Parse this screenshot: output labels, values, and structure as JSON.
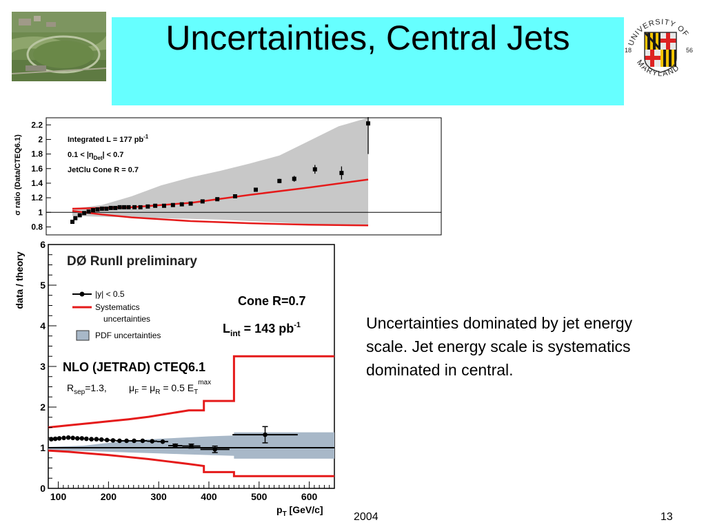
{
  "slide": {
    "title": "Uncertainties, Central Jets",
    "body_text": "Uncertainties dominated by jet energy scale.  Jet energy scale is systematics dominated in central.",
    "footer_year": "2004",
    "page_number": "13"
  },
  "logo": {
    "top_text": "UNIVERSITY OF",
    "bottom_text": "MARYLAND",
    "year_left": "18",
    "year_right": "56"
  },
  "colors": {
    "title_background": "#66ffff",
    "systematics_red": "#e51a1a",
    "pdf_band_top": "#c8c8c8",
    "pdf_band_bottom": "#a8b8c8"
  },
  "chart_data": [
    {
      "type": "scatter",
      "ylabel": "σ ratio (Data/CTEQ6.1)",
      "annotations": [
        "Integrated L = 177 pb",
        "-1",
        "0.1 < |η",
        "Det",
        "| < 0.7",
        "JetClu Cone R = 0.7"
      ],
      "y_ticks": [
        "0.8",
        "1",
        "1.2",
        "1.4",
        "1.6",
        "1.8",
        "2",
        "2.2"
      ],
      "ylim": [
        0.7,
        2.25
      ],
      "x_range_normalized": [
        0,
        1
      ],
      "data_points": [
        {
          "x": 0.0,
          "y": 0.87,
          "err": 0.01
        },
        {
          "x": 0.01,
          "y": 0.92,
          "err": 0.01
        },
        {
          "x": 0.025,
          "y": 0.96,
          "err": 0.01
        },
        {
          "x": 0.04,
          "y": 0.99,
          "err": 0.01
        },
        {
          "x": 0.055,
          "y": 1.01,
          "err": 0.01
        },
        {
          "x": 0.07,
          "y": 1.03,
          "err": 0.01
        },
        {
          "x": 0.085,
          "y": 1.04,
          "err": 0.01
        },
        {
          "x": 0.1,
          "y": 1.05,
          "err": 0.01
        },
        {
          "x": 0.115,
          "y": 1.05,
          "err": 0.01
        },
        {
          "x": 0.13,
          "y": 1.06,
          "err": 0.01
        },
        {
          "x": 0.145,
          "y": 1.06,
          "err": 0.01
        },
        {
          "x": 0.16,
          "y": 1.07,
          "err": 0.01
        },
        {
          "x": 0.175,
          "y": 1.07,
          "err": 0.01
        },
        {
          "x": 0.19,
          "y": 1.07,
          "err": 0.01
        },
        {
          "x": 0.21,
          "y": 1.07,
          "err": 0.01
        },
        {
          "x": 0.23,
          "y": 1.07,
          "err": 0.01
        },
        {
          "x": 0.255,
          "y": 1.08,
          "err": 0.01
        },
        {
          "x": 0.28,
          "y": 1.09,
          "err": 0.01
        },
        {
          "x": 0.31,
          "y": 1.09,
          "err": 0.01
        },
        {
          "x": 0.34,
          "y": 1.1,
          "err": 0.01
        },
        {
          "x": 0.37,
          "y": 1.11,
          "err": 0.01
        },
        {
          "x": 0.4,
          "y": 1.12,
          "err": 0.01
        },
        {
          "x": 0.44,
          "y": 1.15,
          "err": 0.01
        },
        {
          "x": 0.49,
          "y": 1.18,
          "err": 0.01
        },
        {
          "x": 0.55,
          "y": 1.22,
          "err": 0.01
        },
        {
          "x": 0.62,
          "y": 1.31,
          "err": 0.02
        },
        {
          "x": 0.7,
          "y": 1.43,
          "err": 0.03
        },
        {
          "x": 0.75,
          "y": 1.46,
          "err": 0.04
        },
        {
          "x": 0.82,
          "y": 1.59,
          "err": 0.06
        },
        {
          "x": 0.91,
          "y": 1.54,
          "err": 0.09
        },
        {
          "x": 1.0,
          "y": 2.22,
          "err": 0.42
        }
      ],
      "systematics_upper": [
        [
          0.0,
          1.05
        ],
        [
          0.2,
          1.07
        ],
        [
          0.4,
          1.13
        ],
        [
          0.6,
          1.24
        ],
        [
          0.8,
          1.34
        ],
        [
          1.0,
          1.45
        ]
      ],
      "systematics_lower": [
        [
          0.0,
          1.02
        ],
        [
          0.1,
          0.97
        ],
        [
          0.2,
          0.93
        ],
        [
          0.4,
          0.88
        ],
        [
          0.6,
          0.85
        ],
        [
          0.8,
          0.83
        ],
        [
          1.0,
          0.82
        ]
      ],
      "pdf_band_upper": [
        [
          0.0,
          1.05
        ],
        [
          0.1,
          1.1
        ],
        [
          0.2,
          1.22
        ],
        [
          0.3,
          1.37
        ],
        [
          0.4,
          1.48
        ],
        [
          0.5,
          1.57
        ],
        [
          0.6,
          1.67
        ],
        [
          0.7,
          1.78
        ],
        [
          0.8,
          1.98
        ],
        [
          0.9,
          2.18
        ],
        [
          1.0,
          2.3
        ]
      ],
      "pdf_band_lower": [
        [
          0.0,
          0.95
        ],
        [
          0.1,
          0.94
        ],
        [
          0.2,
          0.93
        ],
        [
          0.3,
          0.92
        ],
        [
          0.4,
          0.91
        ],
        [
          0.5,
          0.9
        ],
        [
          0.6,
          0.88
        ],
        [
          0.7,
          0.86
        ],
        [
          0.8,
          0.84
        ],
        [
          0.9,
          0.83
        ],
        [
          1.0,
          0.82
        ]
      ]
    },
    {
      "type": "scatter",
      "title": "DØ RunII preliminary",
      "xlabel": "p",
      "xlabel_sub": "T",
      "xlabel_unit": " [GeV/c]",
      "ylabel": "data / theory",
      "xlim": [
        80,
        650
      ],
      "ylim": [
        0,
        6
      ],
      "x_ticks": [
        "100",
        "200",
        "300",
        "400",
        "500",
        "600"
      ],
      "y_ticks": [
        "0",
        "1",
        "2",
        "3",
        "4",
        "5",
        "6"
      ],
      "legend": [
        {
          "name": "|y| < 0.5",
          "symbol": "marker"
        },
        {
          "name": "Systematics",
          "continuation": "uncertainties",
          "symbol": "red-line"
        },
        {
          "name": "PDF uncertainties",
          "symbol": "band"
        }
      ],
      "annotations": {
        "cone": "Cone R=0.7",
        "lumi_main": "L",
        "lumi_sub": "int",
        "lumi_rest": " = 143 pb",
        "lumi_sup": "-1",
        "nlo": "NLO (JETRAD) CTEQ6.1",
        "rsep_R": "R",
        "rsep_sub": "sep",
        "rsep_rest": "=1.3,",
        "mu_text": "μ",
        "mu_f_sub": "F",
        "mu_eq": " = μ",
        "mu_r_sub": "R",
        "mu_rest": " = 0.5 E",
        "mu_et_sub": "T",
        "mu_et_sup": "max"
      },
      "data_points": [
        {
          "x": 86,
          "y": 1.21,
          "err": 0.02,
          "xerr": 4
        },
        {
          "x": 94,
          "y": 1.22,
          "err": 0.02,
          "xerr": 4
        },
        {
          "x": 102,
          "y": 1.23,
          "err": 0.02,
          "xerr": 4
        },
        {
          "x": 111,
          "y": 1.24,
          "err": 0.02,
          "xerr": 4
        },
        {
          "x": 120,
          "y": 1.25,
          "err": 0.02,
          "xerr": 4
        },
        {
          "x": 129,
          "y": 1.24,
          "err": 0.02,
          "xerr": 4
        },
        {
          "x": 138,
          "y": 1.23,
          "err": 0.02,
          "xerr": 4
        },
        {
          "x": 147,
          "y": 1.23,
          "err": 0.02,
          "xerr": 4
        },
        {
          "x": 156,
          "y": 1.22,
          "err": 0.02,
          "xerr": 4
        },
        {
          "x": 166,
          "y": 1.21,
          "err": 0.02,
          "xerr": 5
        },
        {
          "x": 176,
          "y": 1.21,
          "err": 0.02,
          "xerr": 5
        },
        {
          "x": 186,
          "y": 1.2,
          "err": 0.02,
          "xerr": 5
        },
        {
          "x": 197,
          "y": 1.19,
          "err": 0.02,
          "xerr": 6
        },
        {
          "x": 209,
          "y": 1.18,
          "err": 0.02,
          "xerr": 6
        },
        {
          "x": 222,
          "y": 1.17,
          "err": 0.02,
          "xerr": 7
        },
        {
          "x": 236,
          "y": 1.17,
          "err": 0.02,
          "xerr": 7
        },
        {
          "x": 251,
          "y": 1.17,
          "err": 0.02,
          "xerr": 8
        },
        {
          "x": 268,
          "y": 1.17,
          "err": 0.02,
          "xerr": 9
        },
        {
          "x": 287,
          "y": 1.16,
          "err": 0.02,
          "xerr": 10
        },
        {
          "x": 308,
          "y": 1.15,
          "err": 0.03,
          "xerr": 11
        },
        {
          "x": 333,
          "y": 1.05,
          "err": 0.04,
          "xerr": 14
        },
        {
          "x": 365,
          "y": 1.04,
          "err": 0.05,
          "xerr": 18
        },
        {
          "x": 412,
          "y": 0.96,
          "err": 0.08,
          "xerr": 29
        },
        {
          "x": 512,
          "y": 1.32,
          "err": 0.2,
          "xerr": 65
        }
      ],
      "systematics_upper": [
        [
          80,
          1.5
        ],
        [
          120,
          1.55
        ],
        [
          160,
          1.6
        ],
        [
          200,
          1.65
        ],
        [
          240,
          1.7
        ],
        [
          280,
          1.76
        ],
        [
          320,
          1.84
        ],
        [
          360,
          1.92
        ],
        [
          390,
          1.92
        ],
        [
          390,
          2.15
        ],
        [
          450,
          2.15
        ],
        [
          450,
          3.25
        ],
        [
          650,
          3.25
        ]
      ],
      "systematics_lower": [
        [
          80,
          0.93
        ],
        [
          120,
          0.9
        ],
        [
          160,
          0.86
        ],
        [
          200,
          0.82
        ],
        [
          240,
          0.77
        ],
        [
          280,
          0.72
        ],
        [
          320,
          0.66
        ],
        [
          360,
          0.6
        ],
        [
          390,
          0.55
        ],
        [
          390,
          0.4
        ],
        [
          450,
          0.4
        ],
        [
          450,
          0.3
        ],
        [
          650,
          0.3
        ]
      ],
      "pdf_band_upper": [
        [
          80,
          1.02
        ],
        [
          150,
          1.05
        ],
        [
          200,
          1.12
        ],
        [
          250,
          1.18
        ],
        [
          300,
          1.22
        ],
        [
          350,
          1.25
        ],
        [
          400,
          1.28
        ],
        [
          450,
          1.3
        ],
        [
          450,
          1.38
        ],
        [
          650,
          1.38
        ]
      ],
      "pdf_band_lower": [
        [
          80,
          0.93
        ],
        [
          150,
          0.92
        ],
        [
          200,
          0.9
        ],
        [
          250,
          0.88
        ],
        [
          300,
          0.86
        ],
        [
          350,
          0.84
        ],
        [
          400,
          0.82
        ],
        [
          450,
          0.8
        ],
        [
          450,
          0.73
        ],
        [
          650,
          0.73
        ]
      ]
    }
  ]
}
